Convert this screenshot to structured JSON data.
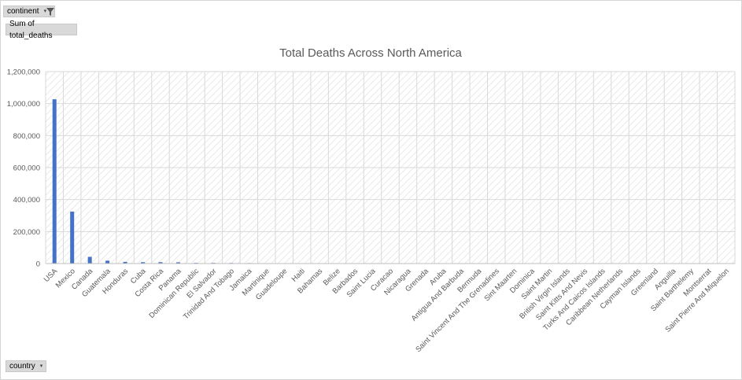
{
  "pivot": {
    "filter_field": "continent",
    "value_field": "Sum of total_deaths",
    "axis_field": "country"
  },
  "colors": {
    "bar": "#4472c4",
    "plot_fill_pattern": "#e9e9e9",
    "gridline": "#d9d9d9"
  },
  "icons": {
    "filter": "filter-funnel-icon",
    "dropdown": "dropdown-arrow-icon"
  },
  "chart_data": {
    "type": "bar",
    "title": "Total Deaths Across North America",
    "xlabel": "",
    "ylabel": "",
    "ylim": [
      0,
      1200000
    ],
    "yticks": [
      0,
      200000,
      400000,
      600000,
      800000,
      1000000,
      1200000
    ],
    "ytick_labels": [
      "0",
      "200,000",
      "400,000",
      "600,000",
      "800,000",
      "1,000,000",
      "1,200,000"
    ],
    "grid": true,
    "legend": "none",
    "categories": [
      "USA",
      "Mexico",
      "Canada",
      "Guatemala",
      "Honduras",
      "Cuba",
      "Costa Rica",
      "Panama",
      "Dominican Republic",
      "El Salvador",
      "Trinidad And Tobago",
      "Jamaica",
      "Martinique",
      "Guadeloupe",
      "Haiti",
      "Bahamas",
      "Belize",
      "Barbados",
      "Saint Lucia",
      "Curacao",
      "Nicaragua",
      "Grenada",
      "Aruba",
      "Antigua And Barbuda",
      "Bermuda",
      "Saint Vincent And The Grenadines",
      "Sint Maarten",
      "Dominica",
      "Saint Martin",
      "British Virgin Islands",
      "Saint Kitts And Nevis",
      "Turks And Caicos Islands",
      "Caribbean Netherlands",
      "Cayman Islands",
      "Greenland",
      "Anguilla",
      "Saint Barthelemy",
      "Montserrat",
      "Saint Pierre And Miquelon"
    ],
    "values": [
      1027000,
      325000,
      42000,
      18000,
      10500,
      8500,
      8800,
      7800,
      4300,
      4200,
      3700,
      3200,
      1000,
      1000,
      800,
      800,
      700,
      500,
      400,
      290,
      230,
      230,
      230,
      150,
      150,
      120,
      90,
      70,
      60,
      60,
      50,
      40,
      30,
      30,
      20,
      10,
      10,
      10,
      5
    ]
  }
}
